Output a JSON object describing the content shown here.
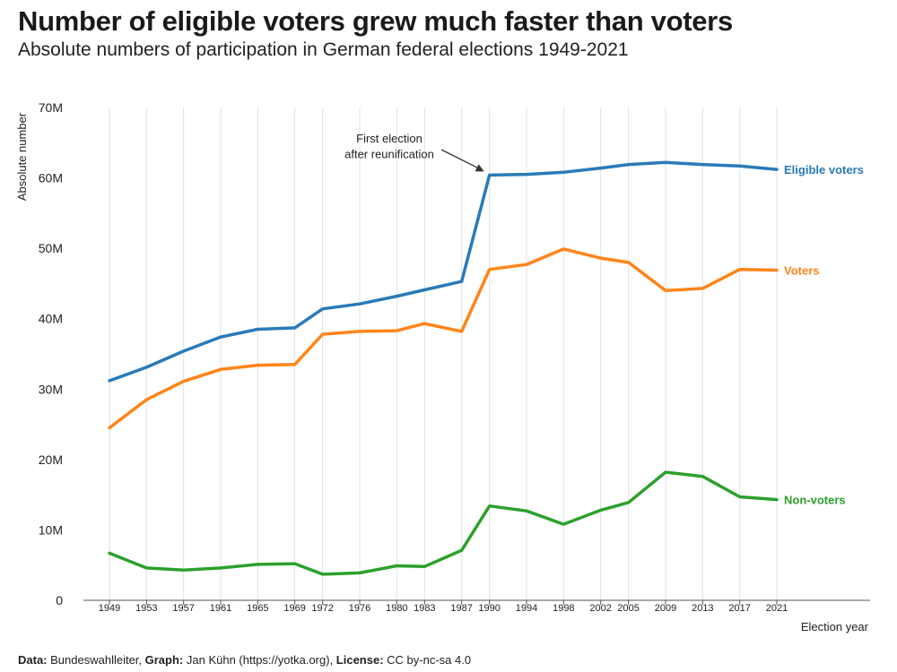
{
  "title": "Number of eligible voters grew much faster than voters",
  "subtitle": "Absolute numbers of participation in German federal elections 1949-2021",
  "footer": {
    "data_label": "Data:",
    "data_value": " Bundeswahlleiter, ",
    "graph_label": "Graph:",
    "graph_value": " Jan Kühn (https://yotka.org), ",
    "license_label": "License:",
    "license_value": " CC by-nc-sa 4.0"
  },
  "chart_data": {
    "type": "line",
    "xlabel": "Election year",
    "ylabel": "Absolute number",
    "ylim": [
      0,
      70000000
    ],
    "yticks": [
      0,
      10000000,
      20000000,
      30000000,
      40000000,
      50000000,
      60000000,
      70000000
    ],
    "ytick_labels": [
      "0",
      "10M",
      "20M",
      "30M",
      "40M",
      "50M",
      "60M",
      "70M"
    ],
    "grid": "vertical",
    "x": [
      1949,
      1953,
      1957,
      1961,
      1965,
      1969,
      1972,
      1976,
      1980,
      1983,
      1987,
      1990,
      1994,
      1998,
      2002,
      2005,
      2009,
      2013,
      2017,
      2021
    ],
    "series": [
      {
        "name": "Eligible voters",
        "color": "#2a7ab8",
        "values": [
          31200000,
          33100000,
          35400000,
          37400000,
          38500000,
          38700000,
          41400000,
          42100000,
          43200000,
          44100000,
          45300000,
          60400000,
          60500000,
          60800000,
          61400000,
          61900000,
          62200000,
          61900000,
          61700000,
          61200000
        ]
      },
      {
        "name": "Voters",
        "color": "#ff8418",
        "values": [
          24500000,
          28500000,
          31100000,
          32800000,
          33400000,
          33500000,
          37800000,
          38200000,
          38300000,
          39300000,
          38200000,
          47000000,
          47700000,
          49900000,
          48600000,
          48000000,
          44000000,
          44300000,
          47000000,
          46900000
        ]
      },
      {
        "name": "Non-voters",
        "color": "#2ca02c",
        "values": [
          6700000,
          4600000,
          4300000,
          4600000,
          5100000,
          5200000,
          3700000,
          3900000,
          4900000,
          4800000,
          7100000,
          13400000,
          12700000,
          10800000,
          12800000,
          13900000,
          18200000,
          17600000,
          14700000,
          14300000
        ]
      }
    ],
    "annotation": {
      "lines": [
        "First election",
        "after reunification"
      ],
      "x": 1990,
      "y": 60400000
    }
  }
}
